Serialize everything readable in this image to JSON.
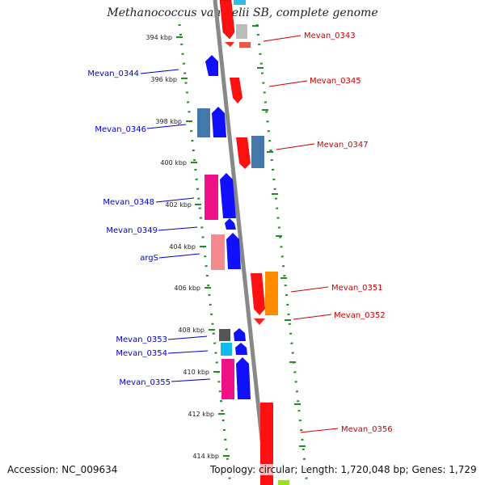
{
  "title": "Methanococcus vannielii SB, complete genome",
  "accession": "Accession: NC_009634",
  "topology": "Topology: circular; Length: 1,720,048 bp; Genes: 1,729",
  "colors": {
    "backbone": "#888888",
    "forward_label": "#0000cc",
    "reverse_label": "#cc0000",
    "dots": "#228b22"
  },
  "ticks": [
    "394 kbp",
    "396 kbp",
    "398 kbp",
    "400 kbp",
    "402 kbp",
    "404 kbp",
    "406 kbp",
    "408 kbp",
    "410 kbp",
    "412 kbp",
    "414 kbp"
  ],
  "forward_labels": [
    "Mevan_0344",
    "Mevan_0346",
    "Mevan_0348",
    "Mevan_0349",
    "argS",
    "Mevan_0353",
    "Mevan_0354",
    "Mevan_0355"
  ],
  "reverse_labels": [
    "Mevan_0343",
    "Mevan_0345",
    "Mevan_0347",
    "Mevan_0351",
    "Mevan_0352",
    "Mevan_0356"
  ]
}
